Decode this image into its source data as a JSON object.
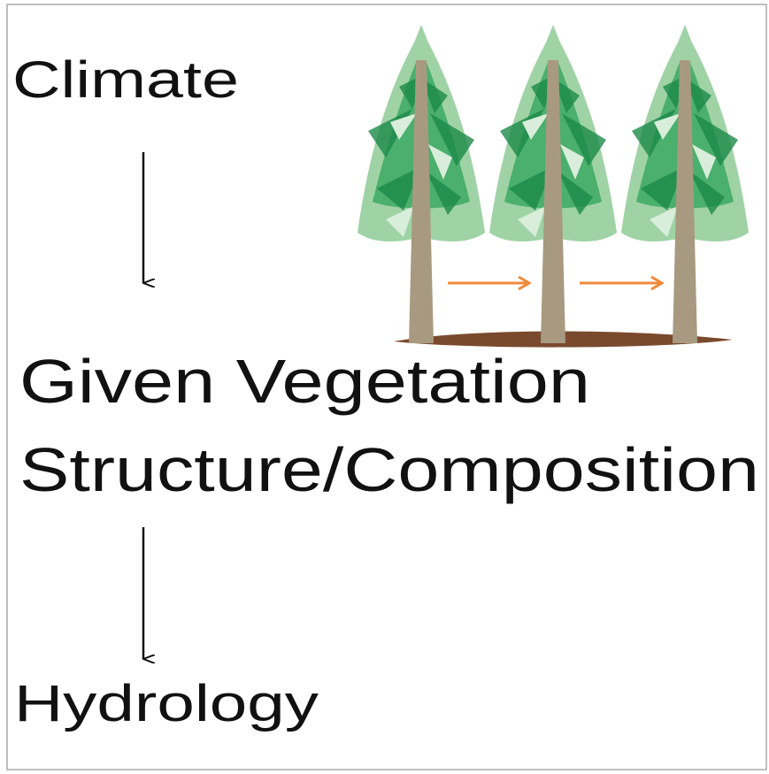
{
  "nodes": [
    {
      "label": "Climate"
    },
    {
      "lines": [
        "Given Vegetation",
        "Structure/Composition"
      ]
    },
    {
      "label": "Hydrology"
    }
  ]
}
